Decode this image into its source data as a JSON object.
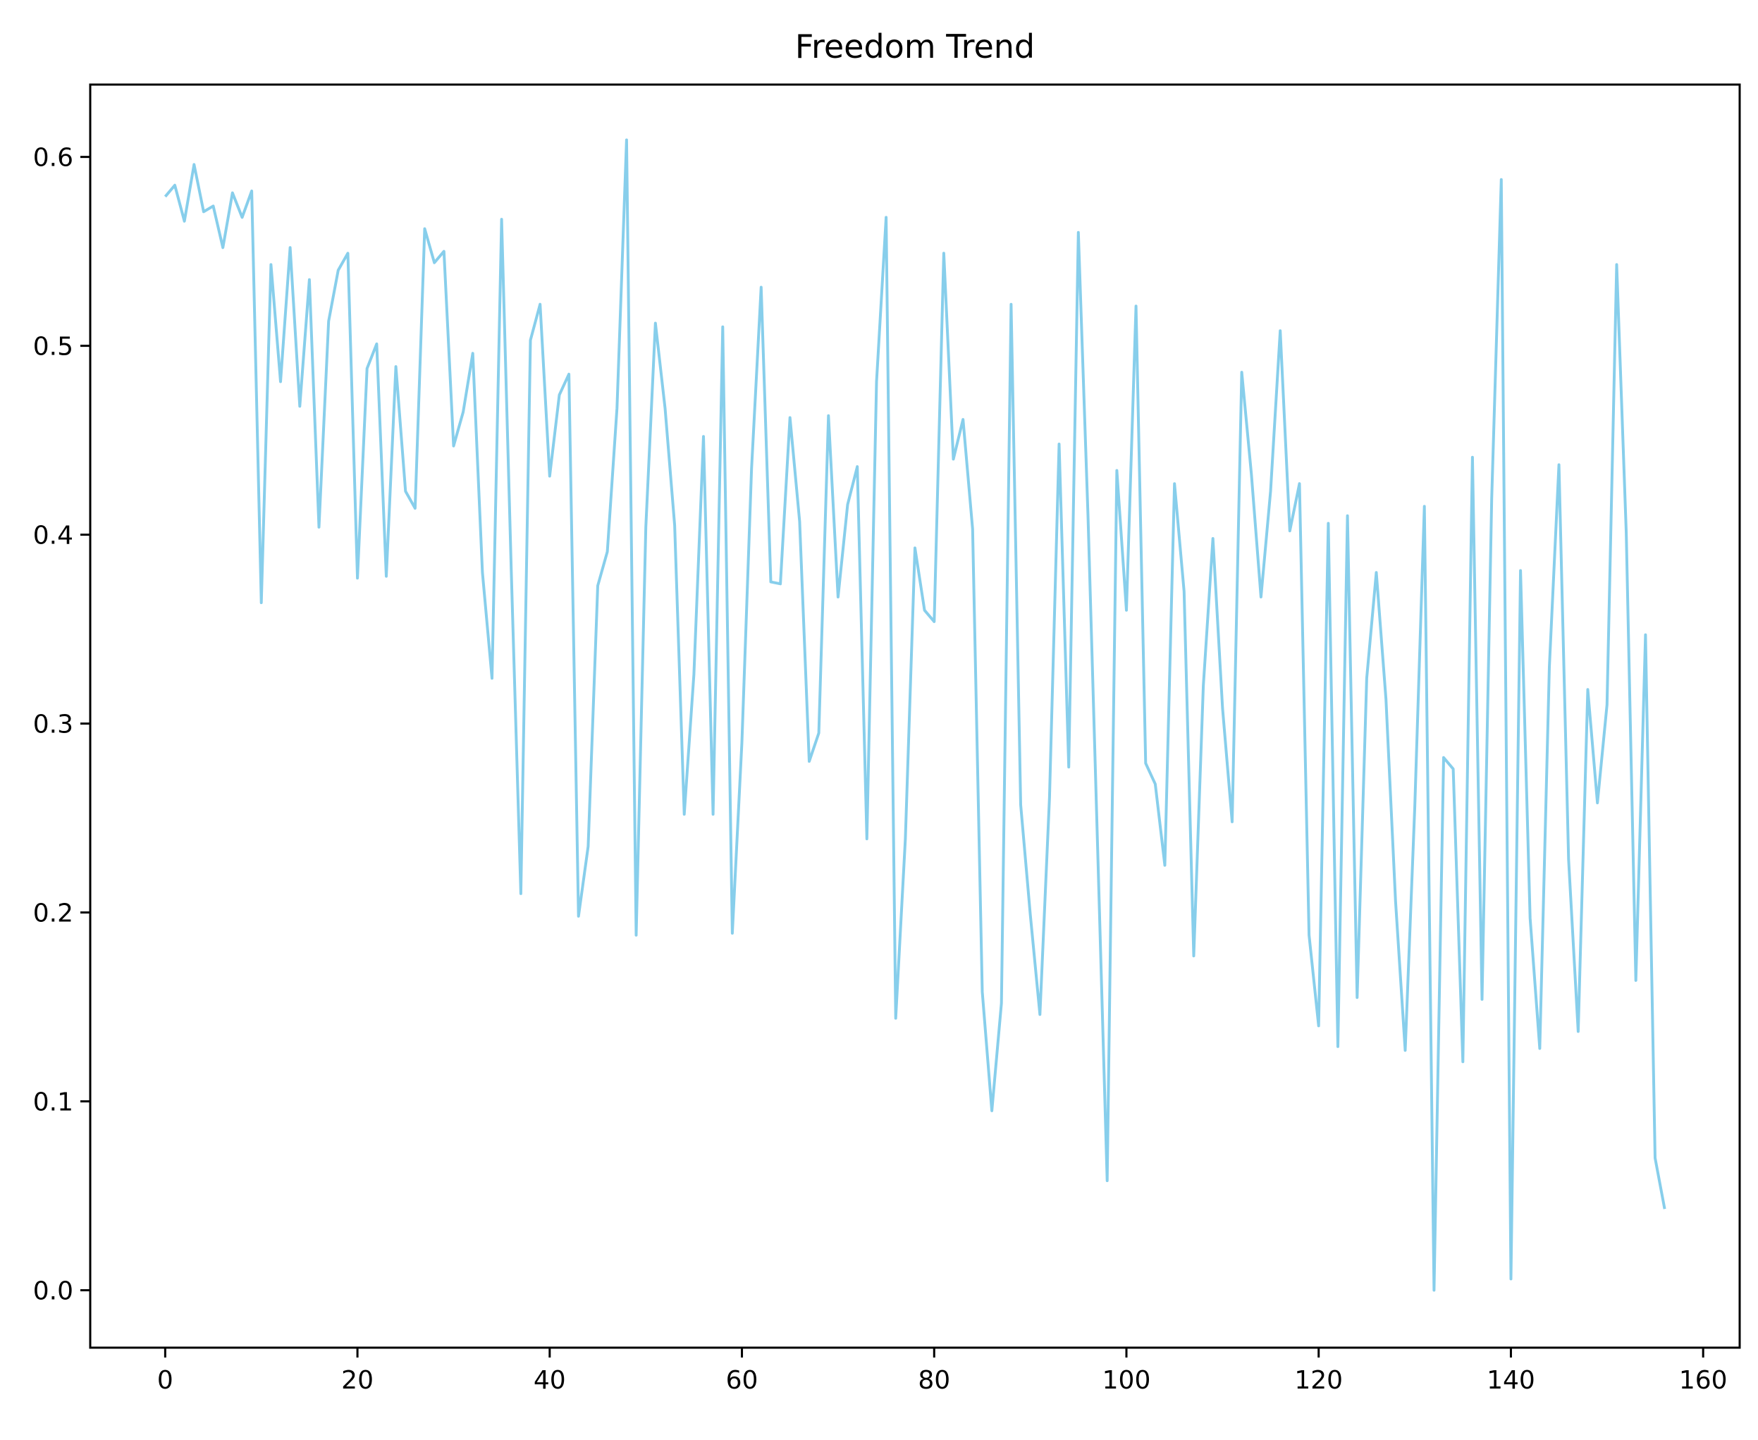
{
  "chart_data": {
    "type": "line",
    "title": "Freedom Trend",
    "xlabel": "",
    "ylabel": "",
    "xlim": [
      -7.8,
      163.8
    ],
    "ylim": [
      -0.0304,
      0.6383
    ],
    "xticks": [
      0,
      20,
      40,
      60,
      80,
      100,
      120,
      140,
      160
    ],
    "xtick_labels": [
      "0",
      "20",
      "40",
      "60",
      "80",
      "100",
      "120",
      "140",
      "160"
    ],
    "yticks": [
      0.0,
      0.1,
      0.2,
      0.3,
      0.4,
      0.5,
      0.6
    ],
    "ytick_labels": [
      "0.0",
      "0.1",
      "0.2",
      "0.3",
      "0.4",
      "0.5",
      "0.6"
    ],
    "grid": false,
    "line_color": "#87ceeb",
    "series": [
      {
        "values": [
          0.579,
          0.585,
          0.566,
          0.596,
          0.571,
          0.574,
          0.552,
          0.581,
          0.568,
          0.582,
          0.364,
          0.543,
          0.481,
          0.552,
          0.468,
          0.535,
          0.404,
          0.513,
          0.54,
          0.549,
          0.377,
          0.488,
          0.501,
          0.378,
          0.489,
          0.423,
          0.414,
          0.562,
          0.544,
          0.55,
          0.447,
          0.465,
          0.496,
          0.38,
          0.324,
          0.567,
          0.381,
          0.21,
          0.503,
          0.522,
          0.431,
          0.474,
          0.485,
          0.198,
          0.235,
          0.373,
          0.391,
          0.467,
          0.609,
          0.188,
          0.404,
          0.512,
          0.467,
          0.405,
          0.252,
          0.326,
          0.452,
          0.252,
          0.51,
          0.189,
          0.29,
          0.435,
          0.531,
          0.375,
          0.374,
          0.462,
          0.407,
          0.28,
          0.295,
          0.463,
          0.367,
          0.416,
          0.436,
          0.239,
          0.481,
          0.568,
          0.144,
          0.239,
          0.393,
          0.36,
          0.354,
          0.549,
          0.44,
          0.461,
          0.403,
          0.158,
          0.095,
          0.152,
          0.522,
          0.257,
          0.199,
          0.146,
          0.261,
          0.448,
          0.277,
          0.56,
          0.41,
          0.235,
          0.058,
          0.434,
          0.36,
          0.521,
          0.279,
          0.268,
          0.225,
          0.427,
          0.37,
          0.177,
          0.32,
          0.398,
          0.308,
          0.248,
          0.486,
          0.432,
          0.367,
          0.423,
          0.508,
          0.402,
          0.427,
          0.188,
          0.14,
          0.406,
          0.129,
          0.41,
          0.155,
          0.324,
          0.38,
          0.313,
          0.206,
          0.127,
          0.256,
          0.415,
          0.0,
          0.282,
          0.276,
          0.121,
          0.441,
          0.154,
          0.419,
          0.588,
          0.006,
          0.381,
          0.197,
          0.128,
          0.33,
          0.437,
          0.228,
          0.137,
          0.318,
          0.258,
          0.31,
          0.543,
          0.401,
          0.164,
          0.347,
          0.07,
          0.043
        ]
      }
    ]
  }
}
